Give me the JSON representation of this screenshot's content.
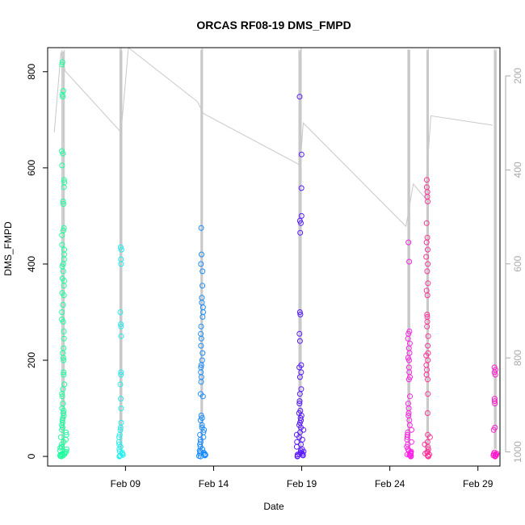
{
  "chart_data": {
    "type": "scatter",
    "title": "ORCAS RF08-19 DMS_FMPD",
    "xlabel": "Date",
    "ylabel": "DMS_FMPD",
    "x_axis": {
      "type": "date",
      "range": [
        "2016-02-04T14:00",
        "2016-03-01T06:00"
      ],
      "ticks": [
        {
          "date": "2016-02-09",
          "label": "Feb 09"
        },
        {
          "date": "2016-02-14",
          "label": "Feb 14"
        },
        {
          "date": "2016-02-19",
          "label": "Feb 19"
        },
        {
          "date": "2016-02-24",
          "label": "Feb 24"
        },
        {
          "date": "2016-02-29",
          "label": "Feb 29"
        }
      ]
    },
    "y_axis": {
      "range": [
        -20,
        850
      ],
      "ticks": [
        0,
        200,
        400,
        600,
        800
      ]
    },
    "y2_axis": {
      "description": "secondary axis on right, reversed (pressure-like), light gray",
      "range": [
        1030,
        140
      ],
      "ticks": [
        200,
        400,
        600,
        800,
        1000
      ],
      "color": "#aaaaaa"
    },
    "grid": false,
    "legend": "none",
    "colors": {
      "RF08": "#1aff9c",
      "RF09": "#22f0f0",
      "RF10": "#1a8cff",
      "RF11": "#5a1aff",
      "RF12": "#ff22e6",
      "RF13": "#ff3399",
      "RF14": "#ff1acc",
      "secondary_line": "#c8c8c8",
      "axis": "#000000"
    },
    "series": [
      {
        "flight": "RF08",
        "color": "#1aff9c",
        "x_center": "2016-02-05T11:00",
        "x_spread_hours": 5,
        "values": [
          820,
          815,
          760,
          752,
          748,
          635,
          630,
          605,
          575,
          570,
          560,
          530,
          525,
          475,
          470,
          460,
          440,
          430,
          420,
          410,
          400,
          395,
          385,
          370,
          365,
          355,
          340,
          335,
          315,
          300,
          285,
          280,
          260,
          245,
          225,
          215,
          205,
          200,
          175,
          170,
          150,
          140,
          130,
          125,
          110,
          100,
          95,
          90,
          85,
          80,
          75,
          70,
          65,
          60,
          55,
          50,
          45,
          40,
          35,
          30,
          25,
          20,
          18,
          15,
          12,
          10,
          8,
          6,
          5,
          4,
          3,
          2,
          1,
          0
        ]
      },
      {
        "flight": "RF09",
        "color": "#22f0f0",
        "x_center": "2016-02-08T18:00",
        "x_spread_hours": 3,
        "values": [
          435,
          430,
          410,
          400,
          300,
          275,
          270,
          250,
          175,
          170,
          150,
          120,
          100,
          70,
          60,
          55,
          45,
          40,
          30,
          25,
          20,
          15,
          10,
          8,
          5,
          3,
          2,
          1,
          0
        ]
      },
      {
        "flight": "RF10",
        "color": "#1a8cff",
        "x_center": "2016-02-13T08:00",
        "x_spread_hours": 5,
        "values": [
          475,
          420,
          400,
          385,
          355,
          330,
          320,
          310,
          300,
          290,
          270,
          255,
          245,
          230,
          215,
          200,
          190,
          185,
          175,
          165,
          155,
          130,
          125,
          85,
          80,
          75,
          65,
          60,
          55,
          50,
          45,
          40,
          35,
          30,
          25,
          20,
          15,
          12,
          10,
          8,
          6,
          5,
          4,
          3,
          2,
          1,
          0
        ]
      },
      {
        "flight": "RF11",
        "color": "#5a1aff",
        "x_center": "2016-02-18T22:00",
        "x_spread_hours": 5,
        "values": [
          748,
          628,
          558,
          500,
          490,
          485,
          465,
          300,
          295,
          255,
          240,
          190,
          185,
          175,
          165,
          140,
          130,
          115,
          110,
          95,
          90,
          85,
          80,
          75,
          70,
          65,
          60,
          55,
          50,
          45,
          40,
          35,
          30,
          25,
          20,
          15,
          12,
          10,
          8,
          6,
          5,
          4,
          3,
          2,
          1,
          0
        ]
      },
      {
        "flight": "RF12",
        "color": "#ff22e6",
        "x_center": "2016-02-25T02:00",
        "x_spread_hours": 4,
        "values": [
          445,
          405,
          260,
          255,
          245,
          235,
          225,
          215,
          205,
          200,
          185,
          175,
          165,
          160,
          125,
          110,
          100,
          90,
          85,
          75,
          65,
          55,
          50,
          45,
          40,
          35,
          30,
          25,
          20,
          15,
          12,
          10,
          8,
          6,
          5,
          4,
          3,
          2,
          1,
          0
        ]
      },
      {
        "flight": "RF13",
        "color": "#ff3399",
        "x_center": "2016-02-26T03:00",
        "x_spread_hours": 4,
        "values": [
          575,
          560,
          550,
          540,
          530,
          485,
          455,
          445,
          430,
          415,
          400,
          385,
          360,
          345,
          335,
          295,
          290,
          280,
          270,
          250,
          230,
          215,
          210,
          200,
          190,
          180,
          170,
          160,
          130,
          90,
          45,
          40,
          30,
          25,
          20,
          15,
          10,
          8,
          6,
          4,
          2,
          1,
          0
        ]
      },
      {
        "flight": "RF14",
        "color": "#ff1acc",
        "x_center": "2016-02-29T23:00",
        "x_spread_hours": 3,
        "values": [
          185,
          180,
          175,
          170,
          120,
          115,
          110,
          60,
          55,
          8,
          6,
          5,
          4,
          3,
          2,
          1,
          0
        ]
      }
    ],
    "secondary_series": {
      "description": "gray pressure trace (secondary axis, reversed)",
      "color": "#c8c8c8",
      "points": [
        {
          "x": "2016-02-04T23:00",
          "y2": 320
        },
        {
          "x": "2016-02-05T08:00",
          "y2": 150
        },
        {
          "x": "2016-02-05T14:00",
          "y2": 190
        },
        {
          "x": "2016-02-08T18:00",
          "y2": 320
        },
        {
          "x": "2016-02-09T04:00",
          "y2": 140
        },
        {
          "x": "2016-02-13T02:00",
          "y2": 255
        },
        {
          "x": "2016-02-13T10:00",
          "y2": 280
        },
        {
          "x": "2016-02-18T22:00",
          "y2": 390
        },
        {
          "x": "2016-02-19T02:00",
          "y2": 300
        },
        {
          "x": "2016-02-24T22:00",
          "y2": 520
        },
        {
          "x": "2016-02-25T08:00",
          "y2": 430
        },
        {
          "x": "2016-02-26T00:00",
          "y2": 460
        },
        {
          "x": "2016-02-26T08:00",
          "y2": 285
        },
        {
          "x": "2016-02-29T20:00",
          "y2": 305
        }
      ]
    }
  }
}
